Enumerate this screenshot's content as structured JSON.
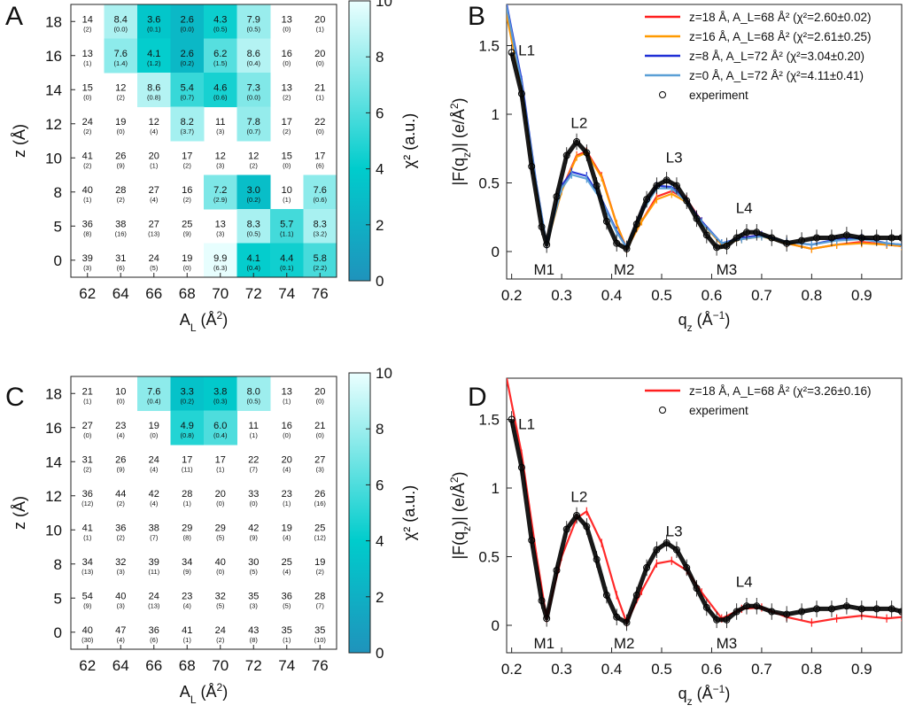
{
  "panels": {
    "A": "A",
    "B": "B",
    "C": "C",
    "D": "D"
  },
  "colorbar_label": "χ² (a.u.)",
  "colorbar_ticks": [
    0,
    2,
    4,
    6,
    8,
    10
  ],
  "colormap": {
    "low": "#1f93bc",
    "mid": "#00cccc",
    "high": "#ebffff",
    "none": "#ffffff"
  },
  "line_colors": {
    "z18": "#ff1f1f",
    "z16": "#ff9a00",
    "z8": "#1f2fd6",
    "z0": "#5a9fd6",
    "exp": "#000000"
  },
  "chart_data": [
    {
      "type": "heatmap",
      "panel": "A",
      "xlabel": "A_L (Å²)",
      "ylabel": "z (Å)",
      "x_categories": [
        "62",
        "64",
        "66",
        "68",
        "70",
        "72",
        "74",
        "76"
      ],
      "y_categories": [
        "18",
        "16",
        "14",
        "12",
        "10",
        "8",
        "5",
        "0"
      ],
      "colorbar": {
        "label": "χ² (a.u.)",
        "min": 0,
        "max": 10
      },
      "values": [
        [
          "14",
          "8.4",
          "3.6",
          "2.6",
          "4.3",
          "7.9",
          "13",
          "20"
        ],
        [
          "13",
          "7.6",
          "4.1",
          "2.6",
          "6.2",
          "8.6",
          "16",
          "20"
        ],
        [
          "15",
          "12",
          "8.6",
          "5.4",
          "4.6",
          "7.3",
          "13",
          "21"
        ],
        [
          "24",
          "19",
          "12",
          "8.2",
          "11",
          "7.8",
          "17",
          "22"
        ],
        [
          "41",
          "26",
          "20",
          "17",
          "12",
          "12",
          "15",
          "17"
        ],
        [
          "40",
          "28",
          "27",
          "16",
          "7.2",
          "3.0",
          "10",
          "7.6"
        ],
        [
          "36",
          "38",
          "27",
          "25",
          "13",
          "8.3",
          "5.7",
          "8.3"
        ],
        [
          "39",
          "31",
          "24",
          "19",
          "9.9",
          "4.1",
          "4.4",
          "5.8"
        ]
      ],
      "errors": [
        [
          "(2)",
          "(0.0)",
          "(0.1)",
          "(0.0)",
          "(0.5)",
          "(0.5)",
          "(0)",
          "(1)"
        ],
        [
          "(1)",
          "(1.4)",
          "(1.2)",
          "(0.2)",
          "(1.5)",
          "(0.4)",
          "(0)",
          "(0)"
        ],
        [
          "(0)",
          "(2)",
          "(0.8)",
          "(0.7)",
          "(0.6)",
          "(0.0)",
          "(2)",
          "(1)"
        ],
        [
          "(2)",
          "(0)",
          "(4)",
          "(3.7)",
          "(3)",
          "(0.7)",
          "(2)",
          "(0)"
        ],
        [
          "(2)",
          "(9)",
          "(1)",
          "(2)",
          "(3)",
          "(2)",
          "(0)",
          "(6)"
        ],
        [
          "(1)",
          "(2)",
          "(4)",
          "(2)",
          "(2.9)",
          "(0.2)",
          "(1)",
          "(0.6)"
        ],
        [
          "(8)",
          "(16)",
          "(13)",
          "(9)",
          "(3)",
          "(0.5)",
          "(1.1)",
          "(3.2)"
        ],
        [
          "(3)",
          "(6)",
          "(5)",
          "(0)",
          "(6.3)",
          "(0.4)",
          "(0.1)",
          "(2.2)"
        ]
      ]
    },
    {
      "type": "line",
      "panel": "B",
      "xlabel": "q_z (Å⁻¹)",
      "ylabel": "|F(q_z)| (e/Å²)",
      "xlim": [
        0.19,
        0.98
      ],
      "ylim": [
        -0.2,
        1.8
      ],
      "x_ticks": [
        "0.2",
        "0.3",
        "0.4",
        "0.5",
        "0.6",
        "0.7",
        "0.8",
        "0.9"
      ],
      "y_ticks": [
        "0",
        "0.5",
        "1",
        "1.5"
      ],
      "annotations": [
        "L1",
        "L2",
        "L3",
        "L4",
        "M1",
        "M2",
        "M3"
      ],
      "legend_position": "top-right",
      "legend": [
        "z=18 Å, A_L=68 Å² (χ²=2.60±0.02)",
        "z=16 Å, A_L=68 Å² (χ²=2.61±0.25)",
        "z=8 Å, A_L=72 Å² (χ²=3.04±0.20)",
        "z=0 Å, A_L=72 Å² (χ²=4.11±0.41)",
        "experiment"
      ],
      "series": [
        {
          "name": "z=18 Å, A_L=68 Å²",
          "x": [
            0.19,
            0.22,
            0.25,
            0.27,
            0.3,
            0.33,
            0.35,
            0.38,
            0.41,
            0.43,
            0.46,
            0.49,
            0.52,
            0.55,
            0.58,
            0.62,
            0.66,
            0.7,
            0.75,
            0.8,
            0.85,
            0.9,
            0.95,
            0.98
          ],
          "y": [
            1.75,
            1.2,
            0.45,
            0.05,
            0.45,
            0.7,
            0.73,
            0.55,
            0.2,
            0.02,
            0.22,
            0.4,
            0.44,
            0.38,
            0.22,
            0.05,
            0.1,
            0.12,
            0.06,
            0.02,
            0.05,
            0.07,
            0.05,
            0.04
          ]
        },
        {
          "name": "z=16 Å, A_L=68 Å²",
          "x": [
            0.19,
            0.22,
            0.25,
            0.27,
            0.3,
            0.33,
            0.35,
            0.38,
            0.41,
            0.43,
            0.46,
            0.49,
            0.52,
            0.55,
            0.58,
            0.62,
            0.66,
            0.7,
            0.75,
            0.8,
            0.85,
            0.9,
            0.95,
            0.98
          ],
          "y": [
            1.72,
            1.18,
            0.44,
            0.05,
            0.44,
            0.69,
            0.72,
            0.54,
            0.2,
            0.02,
            0.22,
            0.38,
            0.42,
            0.36,
            0.21,
            0.05,
            0.09,
            0.11,
            0.06,
            0.02,
            0.05,
            0.06,
            0.05,
            0.04
          ]
        },
        {
          "name": "z=8 Å, A_L=72 Å²",
          "x": [
            0.19,
            0.22,
            0.25,
            0.27,
            0.3,
            0.32,
            0.35,
            0.38,
            0.41,
            0.43,
            0.46,
            0.49,
            0.52,
            0.55,
            0.58,
            0.62,
            0.66,
            0.7,
            0.75,
            0.8,
            0.85,
            0.9,
            0.95,
            0.98
          ],
          "y": [
            1.8,
            1.25,
            0.48,
            0.05,
            0.48,
            0.58,
            0.55,
            0.38,
            0.15,
            0.03,
            0.3,
            0.48,
            0.47,
            0.37,
            0.22,
            0.06,
            0.1,
            0.12,
            0.07,
            0.05,
            0.09,
            0.1,
            0.06,
            0.05
          ]
        },
        {
          "name": "z=0 Å, A_L=72 Å²",
          "x": [
            0.19,
            0.22,
            0.25,
            0.27,
            0.3,
            0.32,
            0.35,
            0.38,
            0.41,
            0.43,
            0.46,
            0.49,
            0.52,
            0.55,
            0.58,
            0.62,
            0.66,
            0.7,
            0.75,
            0.8,
            0.85,
            0.9,
            0.95,
            0.98
          ],
          "y": [
            1.78,
            1.22,
            0.47,
            0.05,
            0.46,
            0.56,
            0.53,
            0.37,
            0.14,
            0.03,
            0.28,
            0.46,
            0.46,
            0.36,
            0.21,
            0.06,
            0.09,
            0.11,
            0.07,
            0.05,
            0.08,
            0.09,
            0.06,
            0.05
          ]
        },
        {
          "name": "experiment",
          "x": [
            0.2,
            0.22,
            0.24,
            0.26,
            0.27,
            0.29,
            0.31,
            0.33,
            0.35,
            0.37,
            0.39,
            0.41,
            0.43,
            0.45,
            0.47,
            0.49,
            0.51,
            0.53,
            0.55,
            0.57,
            0.59,
            0.61,
            0.63,
            0.65,
            0.67,
            0.69,
            0.72,
            0.75,
            0.78,
            0.81,
            0.84,
            0.87,
            0.9,
            0.93,
            0.96,
            0.98
          ],
          "y": [
            1.45,
            1.15,
            0.62,
            0.18,
            0.05,
            0.4,
            0.7,
            0.8,
            0.72,
            0.48,
            0.22,
            0.06,
            0.02,
            0.2,
            0.38,
            0.48,
            0.52,
            0.48,
            0.37,
            0.24,
            0.12,
            0.03,
            0.04,
            0.1,
            0.14,
            0.14,
            0.1,
            0.06,
            0.08,
            0.1,
            0.1,
            0.12,
            0.1,
            0.1,
            0.1,
            0.1
          ]
        }
      ]
    },
    {
      "type": "heatmap",
      "panel": "C",
      "xlabel": "A_L (Å²)",
      "ylabel": "z (Å)",
      "x_categories": [
        "62",
        "64",
        "66",
        "68",
        "70",
        "72",
        "74",
        "76"
      ],
      "y_categories": [
        "18",
        "16",
        "14",
        "12",
        "10",
        "8",
        "5",
        "0"
      ],
      "colorbar": {
        "label": "χ² (a.u.)",
        "min": 0,
        "max": 10
      },
      "values": [
        [
          "21",
          "10",
          "7.6",
          "3.3",
          "3.8",
          "8.0",
          "13",
          "20"
        ],
        [
          "27",
          "23",
          "19",
          "4.9",
          "6.0",
          "11",
          "16",
          "21"
        ],
        [
          "31",
          "26",
          "24",
          "17",
          "17",
          "22",
          "20",
          "27"
        ],
        [
          "36",
          "44",
          "42",
          "28",
          "20",
          "33",
          "23",
          "26"
        ],
        [
          "41",
          "36",
          "38",
          "29",
          "29",
          "42",
          "19",
          "25"
        ],
        [
          "34",
          "32",
          "39",
          "34",
          "40",
          "30",
          "25",
          "19"
        ],
        [
          "54",
          "40",
          "24",
          "23",
          "32",
          "35",
          "36",
          "28"
        ],
        [
          "40",
          "47",
          "36",
          "41",
          "24",
          "43",
          "35",
          "35"
        ]
      ],
      "errors": [
        [
          "(1)",
          "(0)",
          "(0.4)",
          "(0.2)",
          "(0.3)",
          "(0.5)",
          "(1)",
          "(0)"
        ],
        [
          "(0)",
          "(4)",
          "(0)",
          "(0.8)",
          "(0.4)",
          "(1)",
          "(0)",
          "(0)"
        ],
        [
          "(2)",
          "(9)",
          "(4)",
          "(11)",
          "(1)",
          "(7)",
          "(4)",
          "(3)"
        ],
        [
          "(12)",
          "(2)",
          "(4)",
          "(1)",
          "(0)",
          "(0)",
          "(1)",
          "(16)"
        ],
        [
          "(1)",
          "(2)",
          "(7)",
          "(8)",
          "(5)",
          "(9)",
          "(4)",
          "(12)"
        ],
        [
          "(13)",
          "(3)",
          "(11)",
          "(9)",
          "(0)",
          "(5)",
          "(4)",
          "(2)"
        ],
        [
          "(9)",
          "(3)",
          "(13)",
          "(4)",
          "(5)",
          "(3)",
          "(5)",
          "(7)"
        ],
        [
          "(30)",
          "(4)",
          "(6)",
          "(1)",
          "(2)",
          "(8)",
          "(1)",
          "(10)"
        ]
      ]
    },
    {
      "type": "line",
      "panel": "D",
      "xlabel": "q_z (Å⁻¹)",
      "ylabel": "|F(q_z)| (e/Å²)",
      "xlim": [
        0.19,
        0.98
      ],
      "ylim": [
        -0.2,
        1.8
      ],
      "x_ticks": [
        "0.2",
        "0.3",
        "0.4",
        "0.5",
        "0.6",
        "0.7",
        "0.8",
        "0.9"
      ],
      "y_ticks": [
        "0",
        "0.5",
        "1",
        "1.5"
      ],
      "annotations": [
        "L1",
        "L2",
        "L3",
        "L4",
        "M1",
        "M2",
        "M3"
      ],
      "legend_position": "top-right",
      "legend": [
        "z=18 Å, A_L=68 Å² (χ²=3.26±0.16)",
        "experiment"
      ],
      "series": [
        {
          "name": "z=18 Å, A_L=68 Å²",
          "x": [
            0.19,
            0.22,
            0.25,
            0.27,
            0.3,
            0.33,
            0.35,
            0.38,
            0.41,
            0.43,
            0.46,
            0.49,
            0.52,
            0.55,
            0.58,
            0.62,
            0.66,
            0.7,
            0.75,
            0.8,
            0.85,
            0.9,
            0.95,
            0.98
          ],
          "y": [
            1.8,
            1.25,
            0.5,
            0.05,
            0.5,
            0.78,
            0.83,
            0.6,
            0.22,
            0.02,
            0.25,
            0.45,
            0.47,
            0.4,
            0.24,
            0.05,
            0.12,
            0.13,
            0.06,
            0.02,
            0.05,
            0.07,
            0.05,
            0.06
          ]
        },
        {
          "name": "experiment",
          "x": [
            0.2,
            0.22,
            0.24,
            0.26,
            0.27,
            0.29,
            0.31,
            0.33,
            0.35,
            0.37,
            0.39,
            0.41,
            0.43,
            0.45,
            0.47,
            0.49,
            0.51,
            0.53,
            0.55,
            0.57,
            0.59,
            0.61,
            0.63,
            0.65,
            0.67,
            0.69,
            0.72,
            0.75,
            0.78,
            0.81,
            0.84,
            0.87,
            0.9,
            0.93,
            0.96,
            0.98
          ],
          "y": [
            1.5,
            1.15,
            0.62,
            0.18,
            0.05,
            0.4,
            0.7,
            0.8,
            0.72,
            0.48,
            0.22,
            0.06,
            0.02,
            0.22,
            0.42,
            0.55,
            0.6,
            0.55,
            0.42,
            0.27,
            0.13,
            0.04,
            0.04,
            0.1,
            0.14,
            0.14,
            0.1,
            0.08,
            0.1,
            0.12,
            0.12,
            0.14,
            0.12,
            0.12,
            0.12,
            0.1
          ]
        }
      ]
    }
  ]
}
